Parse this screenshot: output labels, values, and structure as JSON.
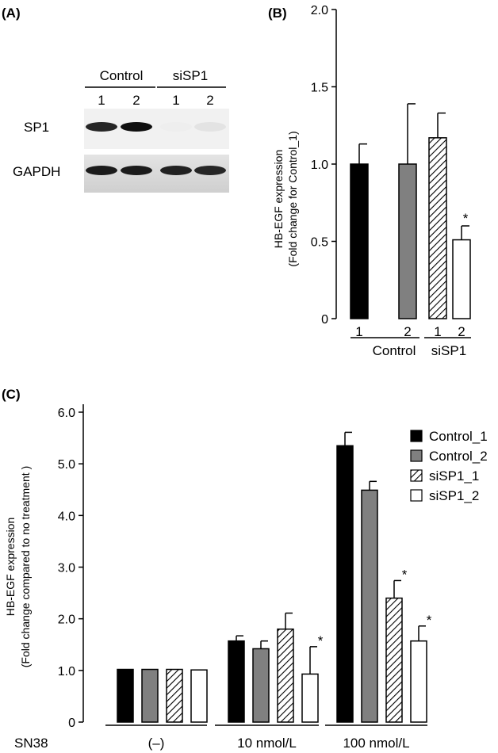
{
  "panel_labels": {
    "a": "(A)",
    "b": "(B)",
    "c": "(C)"
  },
  "blot": {
    "groups": [
      "Control",
      "siSP1"
    ],
    "lanes": [
      "1",
      "2",
      "1",
      "2"
    ],
    "rows": [
      {
        "label": "SP1",
        "intensities": [
          0.9,
          1.0,
          0.03,
          0.08
        ]
      },
      {
        "label": "GAPDH",
        "intensities": [
          0.95,
          0.95,
          0.92,
          0.9
        ]
      }
    ]
  },
  "legend": {
    "items": [
      "Control_1",
      "Control_2",
      "siSP1_1",
      "siSP1_2"
    ]
  },
  "series_styles": [
    {
      "fill": "#000000"
    },
    {
      "fill": "#808080"
    },
    {
      "fill": "hatch"
    },
    {
      "fill": "#ffffff"
    }
  ],
  "chart_data": [
    {
      "type": "bar",
      "panel": "B",
      "ylabel": "HB-EGF expression",
      "ylabel2": "(Fold change for Control_1)",
      "ylim": [
        0,
        2.0
      ],
      "yticks": [
        "0",
        "0.5",
        "1.0",
        "1.5",
        "2.0"
      ],
      "yticks_values": [
        0,
        0.5,
        1.0,
        1.5,
        2.0
      ],
      "categories": [
        "1",
        "2",
        "1",
        "2"
      ],
      "groups": [
        "Control",
        "siSP1"
      ],
      "values": [
        1.0,
        1.0,
        1.17,
        0.51
      ],
      "errors": [
        0.13,
        0.39,
        0.16,
        0.09
      ],
      "significance": [
        "",
        "",
        "",
        "*"
      ]
    },
    {
      "type": "bar",
      "panel": "C",
      "ylabel": "HB-EGF expression",
      "ylabel2": "(Fold change compared to no treatment )",
      "ylim": [
        0,
        6.0
      ],
      "yticks": [
        "0",
        "1.0",
        "2.0",
        "3.0",
        "4.0",
        "5.0",
        "6.0"
      ],
      "yticks_values": [
        0,
        1,
        2,
        3,
        4,
        5,
        6
      ],
      "xlabel_prefix": "SN38",
      "categories": [
        "(–)",
        "10 nmol/L",
        "100 nmol/L"
      ],
      "series": [
        {
          "name": "Control_1",
          "values": [
            1.02,
            1.57,
            5.35
          ],
          "errors": [
            0,
            0.1,
            0.26
          ]
        },
        {
          "name": "Control_2",
          "values": [
            1.02,
            1.42,
            4.49
          ],
          "errors": [
            0,
            0.15,
            0.17
          ]
        },
        {
          "name": "siSP1_1",
          "values": [
            1.02,
            1.8,
            2.4
          ],
          "errors": [
            0,
            0.31,
            0.34
          ]
        },
        {
          "name": "siSP1_2",
          "values": [
            1.01,
            0.93,
            1.57
          ],
          "errors": [
            0,
            0.53,
            0.29
          ]
        }
      ],
      "significance": [
        [
          "",
          "",
          ""
        ],
        [
          "",
          "",
          ""
        ],
        [
          "",
          "",
          "*"
        ],
        [
          "",
          "*",
          "*"
        ]
      ]
    }
  ]
}
